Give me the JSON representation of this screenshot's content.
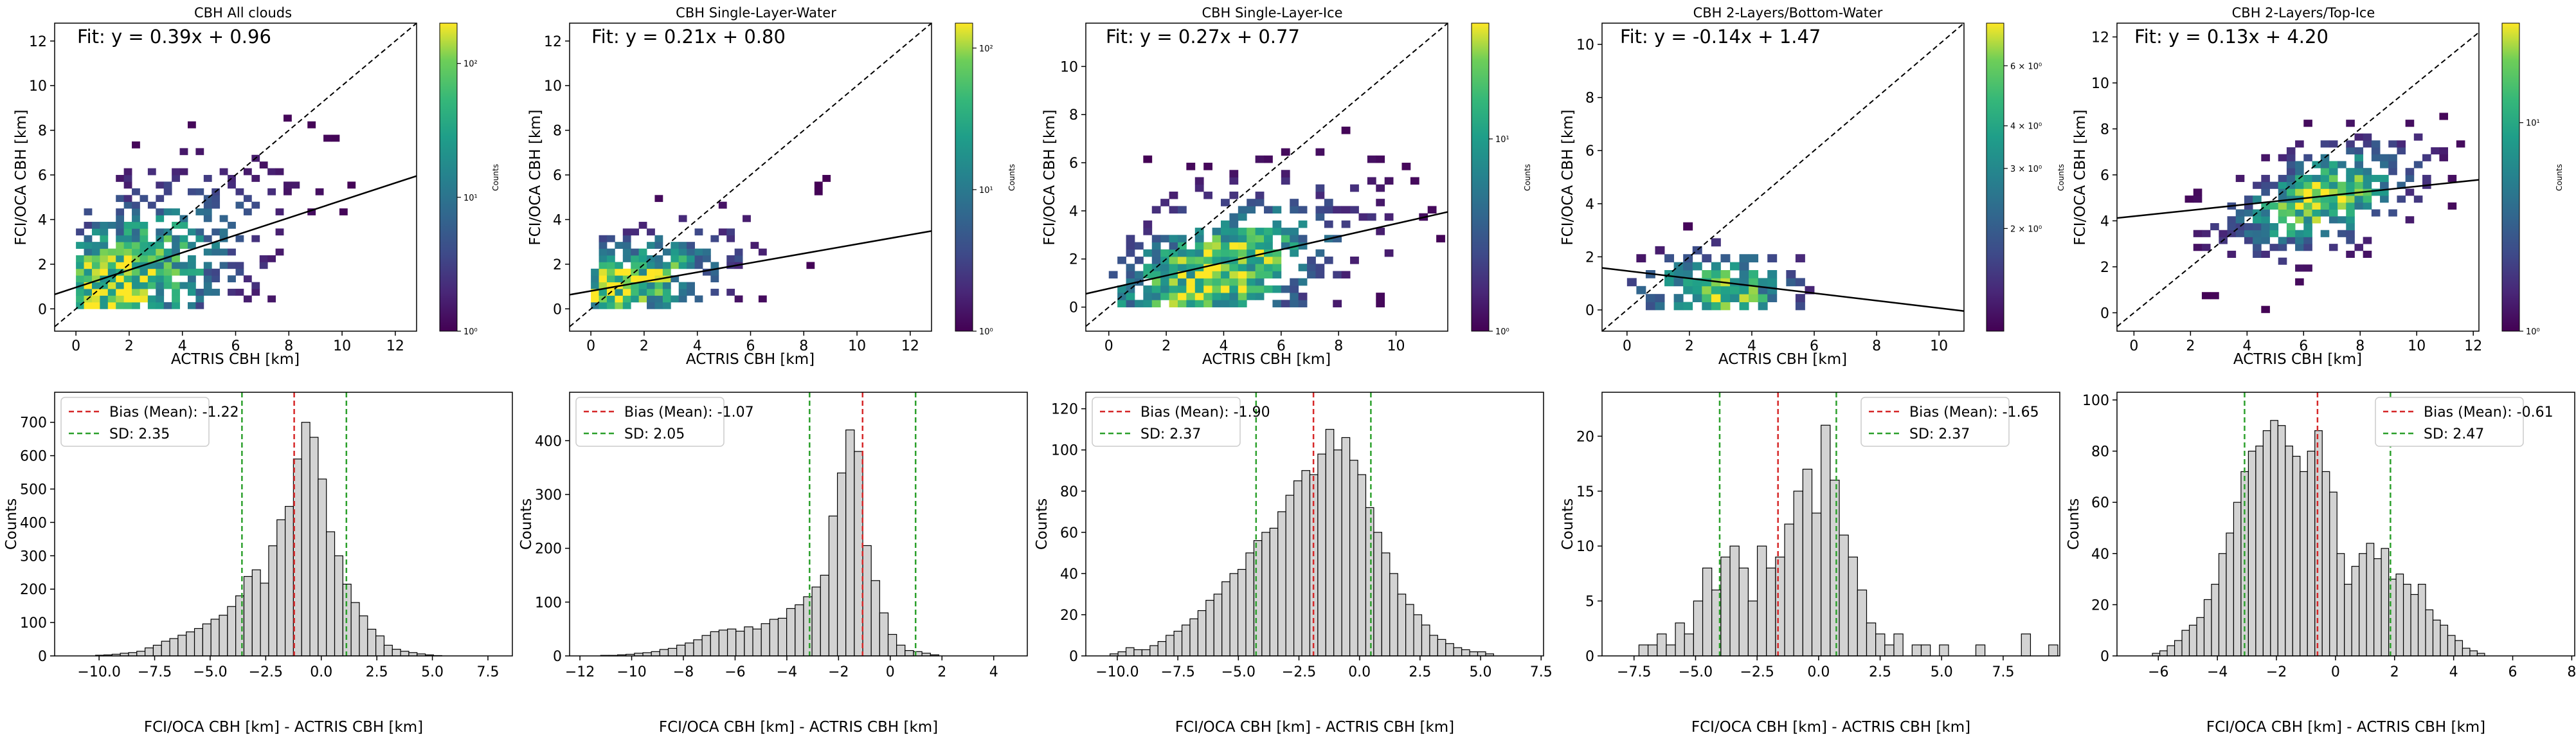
{
  "chart_data": [
    {
      "type": "heatmap",
      "title": "CBH All clouds",
      "fit_label": "Fit: y = 0.39x + 0.96",
      "fit": {
        "slope": 0.39,
        "intercept": 0.96
      },
      "xlabel": "ACTRIS CBH [km]",
      "ylabel": "FCI/OCA CBH [km]",
      "xlim": [
        -0.8,
        12.8
      ],
      "ylim": [
        -1.0,
        12.8
      ],
      "xticks": [
        0,
        2,
        4,
        6,
        8,
        10,
        12
      ],
      "yticks": [
        0,
        2,
        4,
        6,
        8,
        10,
        12
      ],
      "one_to_one_line": true,
      "colorbar": {
        "label": "Counts",
        "scale": "log",
        "range": [
          1,
          200
        ],
        "ticks": [
          "10⁰",
          "10¹",
          "10²"
        ]
      },
      "density": {
        "x_center": 1.2,
        "y_center": 0.8,
        "spread_x": 3.2,
        "spread_y": 2.3,
        "corr": 0.45
      }
    },
    {
      "type": "heatmap",
      "title": "CBH Single-Layer-Water",
      "fit_label": "Fit: y = 0.21x + 0.80",
      "fit": {
        "slope": 0.21,
        "intercept": 0.8
      },
      "xlabel": "ACTRIS CBH [km]",
      "ylabel": "FCI/OCA CBH [km]",
      "xlim": [
        -0.8,
        12.8
      ],
      "ylim": [
        -1.0,
        12.8
      ],
      "xticks": [
        0,
        2,
        4,
        6,
        8,
        10,
        12
      ],
      "yticks": [
        0,
        2,
        4,
        6,
        8,
        10,
        12
      ],
      "one_to_one_line": true,
      "colorbar": {
        "label": "Counts",
        "scale": "log",
        "range": [
          1,
          150
        ],
        "ticks": [
          "10⁰",
          "10¹",
          "10²"
        ]
      },
      "density": {
        "x_center": 1.0,
        "y_center": 0.9,
        "spread_x": 2.6,
        "spread_y": 1.3,
        "corr": 0.3
      }
    },
    {
      "type": "heatmap",
      "title": "CBH Single-Layer-Ice",
      "fit_label": "Fit: y = 0.27x + 0.77",
      "fit": {
        "slope": 0.27,
        "intercept": 0.77
      },
      "xlabel": "ACTRIS CBH [km]",
      "ylabel": "FCI/OCA CBH [km]",
      "xlim": [
        -0.8,
        11.8
      ],
      "ylim": [
        -1.0,
        11.8
      ],
      "xticks": [
        0,
        2,
        4,
        6,
        8,
        10
      ],
      "yticks": [
        0,
        2,
        4,
        6,
        8,
        10
      ],
      "one_to_one_line": true,
      "colorbar": {
        "label": "Counts",
        "scale": "log",
        "range": [
          1,
          40
        ],
        "ticks": [
          "10⁰",
          "10¹"
        ]
      },
      "density": {
        "x_center": 3.5,
        "y_center": 1.2,
        "spread_x": 2.8,
        "spread_y": 1.8,
        "corr": 0.35
      }
    },
    {
      "type": "heatmap",
      "title": "CBH 2-Layers/Bottom-Water",
      "fit_label": "Fit: y = -0.14x + 1.47",
      "fit": {
        "slope": -0.14,
        "intercept": 1.47
      },
      "xlabel": "ACTRIS CBH [km]",
      "ylabel": "FCI/OCA CBH [km]",
      "xlim": [
        -0.8,
        10.8
      ],
      "ylim": [
        -0.8,
        10.8
      ],
      "xticks": [
        0,
        2,
        4,
        6,
        8,
        10
      ],
      "yticks": [
        0,
        2,
        4,
        6,
        8,
        10
      ],
      "one_to_one_line": true,
      "colorbar": {
        "label": "Counts",
        "scale": "log",
        "range": [
          1,
          8
        ],
        "ticks": [
          "6 × 10⁰",
          "4 × 10⁰",
          "3 × 10⁰",
          "2 × 10⁰",
          "10⁰"
        ]
      },
      "density": {
        "x_center": 2.8,
        "y_center": 0.6,
        "spread_x": 1.6,
        "spread_y": 0.9,
        "corr": 0.0
      }
    },
    {
      "type": "heatmap",
      "title": "CBH 2-Layers/Top-Ice",
      "fit_label": "Fit: y = 0.13x + 4.20",
      "fit": {
        "slope": 0.13,
        "intercept": 4.2
      },
      "xlabel": "ACTRIS CBH [km]",
      "ylabel": "FCI/OCA CBH [km]",
      "xlim": [
        -0.6,
        12.2
      ],
      "ylim": [
        -0.8,
        12.6
      ],
      "xticks": [
        0,
        2,
        4,
        6,
        8,
        10,
        12
      ],
      "yticks": [
        0,
        2,
        4,
        6,
        8,
        10,
        12
      ],
      "one_to_one_line": true,
      "colorbar": {
        "label": "Counts",
        "scale": "log",
        "range": [
          1,
          30
        ],
        "ticks": [
          "10⁰",
          "10¹"
        ]
      },
      "density": {
        "x_center": 6.5,
        "y_center": 4.8,
        "spread_x": 2.0,
        "spread_y": 1.3,
        "corr": 0.35
      }
    },
    {
      "type": "bar",
      "chart": "histogram",
      "xlabel": "FCI/OCA CBH [km] - ACTRIS CBH [km]",
      "ylabel": "Counts",
      "xlim": [
        -12.0,
        8.6
      ],
      "ylim": [
        0,
        790
      ],
      "xticks": [
        -10.0,
        -7.5,
        -5.0,
        -2.5,
        0.0,
        2.5,
        5.0,
        7.5
      ],
      "xtick_labels": [
        "−10.0",
        "−7.5",
        "−5.0",
        "−2.5",
        "0.0",
        "2.5",
        "5.0",
        "7.5"
      ],
      "yticks": [
        0,
        100,
        200,
        300,
        400,
        500,
        600,
        700
      ],
      "bin_start": -10.9,
      "bin_width": 0.371,
      "counts": [
        0,
        0,
        2,
        3,
        5,
        8,
        10,
        14,
        24,
        32,
        44,
        52,
        62,
        72,
        82,
        96,
        110,
        122,
        148,
        180,
        238,
        258,
        218,
        330,
        408,
        448,
        590,
        700,
        655,
        530,
        372,
        300,
        215,
        160,
        120,
        80,
        60,
        32,
        20,
        14,
        10,
        6,
        3,
        1
      ],
      "bias_line": -1.22,
      "sd_lines": [
        -3.57,
        1.13
      ],
      "legend": [
        {
          "name": "Bias (Mean): -1.22",
          "color": "#d62728"
        },
        {
          "name": "SD: 2.35",
          "color": "#2ca02c"
        }
      ],
      "legend_position": "top-left"
    },
    {
      "type": "bar",
      "chart": "histogram",
      "xlabel": "FCI/OCA CBH [km] - ACTRIS CBH [km]",
      "ylabel": "Counts",
      "xlim": [
        -12.4,
        5.3
      ],
      "ylim": [
        0,
        490
      ],
      "xticks": [
        -12,
        -10,
        -8,
        -6,
        -4,
        -2,
        0,
        2,
        4
      ],
      "xtick_labels": [
        "−12",
        "−10",
        "−8",
        "−6",
        "−4",
        "−2",
        "0",
        "2",
        "4"
      ],
      "yticks": [
        0,
        100,
        200,
        300,
        400
      ],
      "bin_start": -11.2,
      "bin_width": 0.327,
      "counts": [
        1,
        1,
        2,
        3,
        5,
        6,
        8,
        12,
        14,
        20,
        24,
        30,
        38,
        45,
        48,
        50,
        46,
        54,
        50,
        60,
        68,
        70,
        88,
        95,
        110,
        128,
        150,
        260,
        340,
        420,
        380,
        205,
        140,
        80,
        40,
        20,
        10,
        8,
        5,
        2
      ],
      "bias_line": -1.07,
      "sd_lines": [
        -3.12,
        0.98
      ],
      "legend": [
        {
          "name": "Bias (Mean): -1.07",
          "color": "#d62728"
        },
        {
          "name": "SD: 2.05",
          "color": "#2ca02c"
        }
      ],
      "legend_position": "top-left"
    },
    {
      "type": "bar",
      "chart": "histogram",
      "xlabel": "FCI/OCA CBH [km] - ACTRIS CBH [km]",
      "ylabel": "Counts",
      "xlim": [
        -11.3,
        7.6
      ],
      "ylim": [
        0,
        128
      ],
      "xticks": [
        -10.0,
        -7.5,
        -5.0,
        -2.5,
        0.0,
        2.5,
        5.0,
        7.5
      ],
      "xtick_labels": [
        "−10.0",
        "−7.5",
        "−5.0",
        "−2.5",
        "0.0",
        "2.5",
        "5.0",
        "7.5"
      ],
      "yticks": [
        0,
        20,
        40,
        60,
        80,
        100,
        120
      ],
      "bin_start": -10.3,
      "bin_width": 0.33,
      "counts": [
        1,
        2,
        4,
        3,
        3,
        5,
        7,
        10,
        12,
        15,
        18,
        22,
        27,
        30,
        36,
        40,
        42,
        50,
        56,
        60,
        62,
        70,
        78,
        85,
        90,
        88,
        98,
        110,
        100,
        106,
        95,
        88,
        72,
        60,
        50,
        40,
        30,
        25,
        20,
        15,
        10,
        8,
        6,
        4,
        3,
        2,
        2,
        1
      ],
      "bias_line": -1.9,
      "sd_lines": [
        -4.27,
        0.47
      ],
      "legend": [
        {
          "name": "Bias (Mean): -1.90",
          "color": "#d62728"
        },
        {
          "name": "SD: 2.37",
          "color": "#2ca02c"
        }
      ],
      "legend_position": "top-left"
    },
    {
      "type": "bar",
      "chart": "histogram",
      "xlabel": "FCI/OCA CBH [km] - ACTRIS CBH [km]",
      "ylabel": "Counts",
      "xlim": [
        -8.8,
        9.8
      ],
      "ylim": [
        0,
        24
      ],
      "xticks": [
        -7.5,
        -5.0,
        -2.5,
        0.0,
        2.5,
        5.0,
        7.5
      ],
      "xtick_labels": [
        "−7.5",
        "−5.0",
        "−2.5",
        "0.0",
        "2.5",
        "5.0",
        "7.5"
      ],
      "yticks": [
        0,
        5,
        10,
        15,
        20
      ],
      "bin_start": -7.3,
      "bin_width": 0.37,
      "counts": [
        1,
        1,
        2,
        1,
        3,
        2,
        5,
        8,
        6,
        9,
        10,
        8,
        5,
        10,
        8,
        9,
        12,
        15,
        17,
        13,
        21,
        16,
        11,
        9,
        6,
        3,
        2,
        1,
        2,
        0,
        1,
        1,
        0,
        1,
        0,
        0,
        0,
        1,
        0,
        0,
        0,
        0,
        2,
        0,
        0,
        1
      ],
      "bias_line": -1.65,
      "sd_lines": [
        -4.02,
        0.72
      ],
      "legend": [
        {
          "name": "Bias (Mean): -1.65",
          "color": "#d62728"
        },
        {
          "name": "SD: 2.37",
          "color": "#2ca02c"
        }
      ],
      "legend_position": "top-right"
    },
    {
      "type": "bar",
      "chart": "histogram",
      "xlabel": "FCI/OCA CBH [km] - ACTRIS CBH [km]",
      "ylabel": "Counts",
      "xlim": [
        -7.4,
        8.1
      ],
      "ylim": [
        0,
        103
      ],
      "xticks": [
        -6,
        -4,
        -2,
        0,
        2,
        4,
        6,
        8
      ],
      "xtick_labels": [
        "−6",
        "−4",
        "−2",
        "0",
        "2",
        "4",
        "6",
        "8"
      ],
      "yticks": [
        0,
        20,
        40,
        60,
        80,
        100
      ],
      "bin_start": -6.2,
      "bin_width": 0.25,
      "counts": [
        1,
        2,
        4,
        6,
        10,
        12,
        15,
        22,
        28,
        40,
        48,
        60,
        72,
        80,
        82,
        88,
        92,
        90,
        82,
        78,
        72,
        80,
        88,
        72,
        64,
        40,
        28,
        35,
        40,
        44,
        38,
        42,
        30,
        32,
        28,
        24,
        28,
        18,
        14,
        12,
        8,
        6,
        3,
        2,
        1
      ],
      "bias_line": -0.61,
      "sd_lines": [
        -3.08,
        1.86
      ],
      "legend": [
        {
          "name": "Bias (Mean): -0.61",
          "color": "#d62728"
        },
        {
          "name": "SD: 2.47",
          "color": "#2ca02c"
        }
      ],
      "legend_position": "top-right"
    }
  ]
}
